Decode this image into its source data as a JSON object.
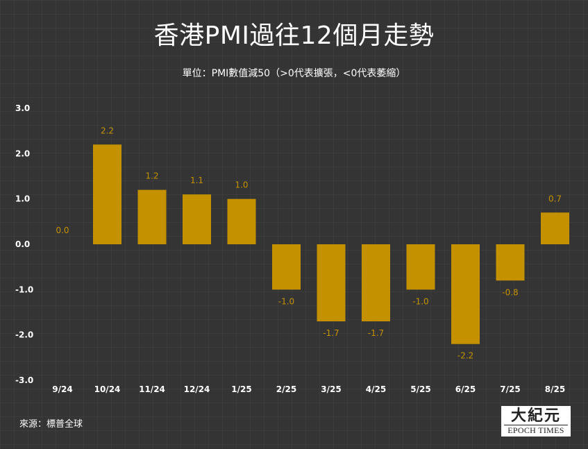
{
  "title": "香港PMI過往12個月走勢",
  "subtitle": "單位：PMI數值減50（>0代表擴張，<0代表萎縮）",
  "source": "來源：標普全球",
  "logo": {
    "cn": "大紀元",
    "en": "EPOCH TIMES"
  },
  "colors": {
    "background": "#343434",
    "bar": "#c49200",
    "label": "#c49200",
    "text": "#ffffff"
  },
  "chart_data": {
    "type": "bar",
    "title": "香港PMI過往12個月走勢",
    "subtitle": "單位：PMI數值減50（>0代表擴張，<0代表萎縮）",
    "xlabel": "",
    "ylabel": "",
    "categories": [
      "9/24",
      "10/24",
      "11/24",
      "12/24",
      "1/25",
      "2/25",
      "3/25",
      "4/25",
      "5/25",
      "6/25",
      "7/25",
      "8/25"
    ],
    "values": [
      0.0,
      2.2,
      1.2,
      1.1,
      1.0,
      -1.0,
      -1.7,
      -1.7,
      -1.0,
      -2.2,
      -0.8,
      0.7
    ],
    "ylim": [
      -3.0,
      3.0
    ],
    "yticks": [
      3.0,
      2.0,
      1.0,
      0.0,
      -1.0,
      -2.0,
      -3.0
    ],
    "grid": false,
    "legend": "none"
  }
}
